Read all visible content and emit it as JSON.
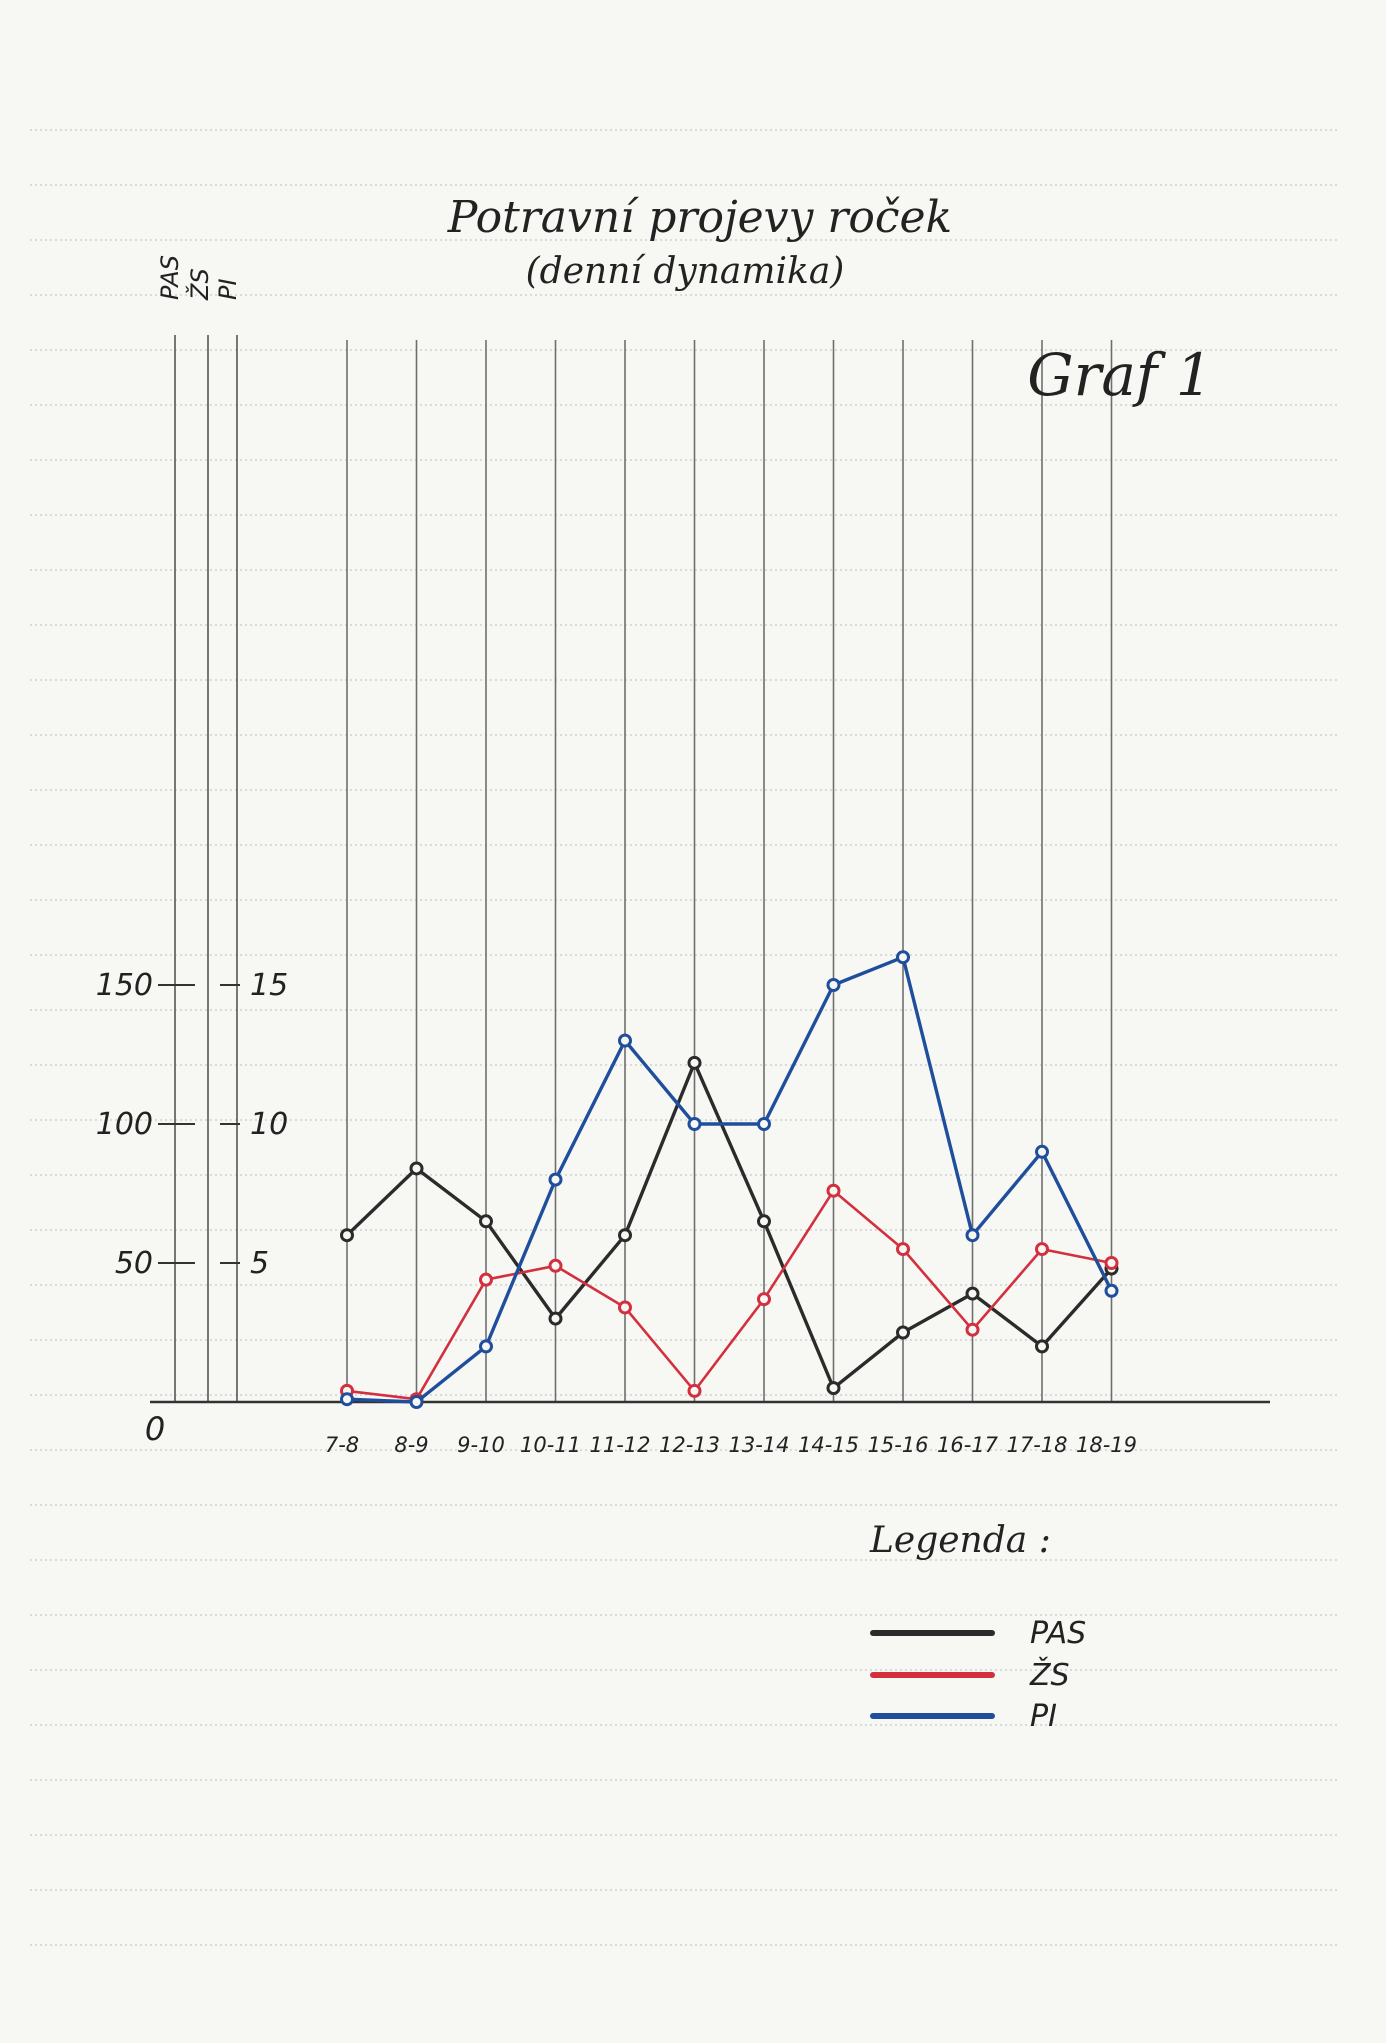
{
  "chart_data": {
    "type": "line",
    "title": "Potravní projevy roček",
    "subtitle": "(denní dynamika)",
    "graph_label": "Graf 1",
    "axes_headers": [
      "PAS",
      "ŽS",
      "PI"
    ],
    "categories": [
      "7-8",
      "8-9",
      "9-10",
      "10-11",
      "11-12",
      "12-13",
      "13-14",
      "14-15",
      "15-16",
      "16-17",
      "17-18",
      "18-19"
    ],
    "origin_label": "0",
    "y_ticks_left": [
      "50",
      "100",
      "150"
    ],
    "y_ticks_right": [
      "5",
      "10",
      "15"
    ],
    "ylim_left": [
      0,
      200
    ],
    "ylim_right": [
      0,
      20
    ],
    "series": [
      {
        "name": "PAS",
        "axis": "left",
        "color": "#2b2b2b",
        "values": [
          60,
          84,
          65,
          30,
          60,
          122,
          65,
          5,
          25,
          39,
          20,
          48
        ]
      },
      {
        "name": "ŽS",
        "axis": "right",
        "color": "#d3303f",
        "values": [
          0.4,
          0.1,
          4.4,
          4.9,
          3.4,
          0.4,
          3.7,
          7.6,
          5.5,
          2.6,
          5.5,
          5.0
        ]
      },
      {
        "name": "PI",
        "axis": "left",
        "color": "#1f4f9c",
        "values": [
          1,
          0,
          20,
          80,
          130,
          100,
          100,
          150,
          160,
          60,
          90,
          40
        ]
      }
    ],
    "legend": {
      "title": "Legenda :",
      "position": "bottom-right",
      "entries": [
        "PAS",
        "ŽS",
        "PI"
      ]
    },
    "grid": true
  }
}
